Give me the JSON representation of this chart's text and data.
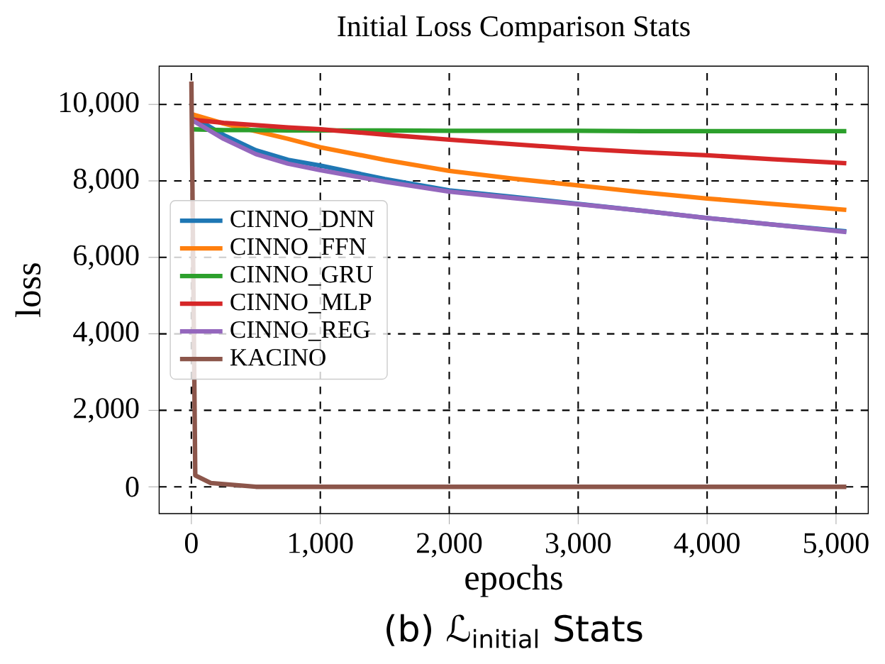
{
  "chart_data": {
    "type": "line",
    "title": "Initial Loss Comparison Stats",
    "xlabel": "epochs",
    "ylabel": "loss",
    "annotations": [
      "(b) ℒ$_{initial}$ Stats"
    ],
    "xlim": [
      -250,
      5250
    ],
    "ylim": [
      -700,
      11000
    ],
    "xticks": [
      0,
      {
        "value": 1000,
        "label": "1,000"
      },
      {
        "value": 2000,
        "label": "2,000"
      },
      {
        "value": 3000,
        "label": "3,000"
      },
      {
        "value": 4000,
        "label": "4,000"
      },
      {
        "value": 5000,
        "label": "5,000"
      }
    ],
    "yticks": [
      0,
      {
        "value": 2000,
        "label": "2,000"
      },
      {
        "value": 4000,
        "label": "4,000"
      },
      {
        "value": 6000,
        "label": "6,000"
      },
      {
        "value": 8000,
        "label": "8,000"
      },
      {
        "value": 10000,
        "label": "10,000"
      }
    ],
    "grid": true,
    "legend": "left",
    "line_style": "solid",
    "x": [
      0,
      250,
      500,
      750,
      1000,
      1500,
      2000,
      2500,
      3000,
      3500,
      4000,
      4500,
      5080
    ],
    "series": [
      {
        "name": "CINNO_DNN",
        "color": "#1f77b4",
        "values": [
          9700,
          9200,
          8800,
          8550,
          8400,
          8050,
          7750,
          7580,
          7400,
          7220,
          7030,
          6860,
          6680
        ]
      },
      {
        "name": "CINNO_FFN",
        "color": "#ff7f0e",
        "values": [
          9750,
          9500,
          9300,
          9100,
          8880,
          8550,
          8260,
          8060,
          7880,
          7700,
          7540,
          7400,
          7240
        ]
      },
      {
        "name": "CINNO_GRU",
        "color": "#2ca02c",
        "values": [
          9350,
          9330,
          9330,
          9320,
          9320,
          9320,
          9310,
          9310,
          9310,
          9300,
          9300,
          9300,
          9300
        ]
      },
      {
        "name": "CINNO_MLP",
        "color": "#d62728",
        "values": [
          9600,
          9520,
          9460,
          9400,
          9350,
          9210,
          9080,
          8960,
          8840,
          8750,
          8670,
          8570,
          8460
        ]
      },
      {
        "name": "CINNO_REG",
        "color": "#9467bd",
        "values": [
          9600,
          9100,
          8700,
          8450,
          8280,
          7980,
          7720,
          7550,
          7390,
          7220,
          7030,
          6860,
          6660
        ]
      },
      {
        "name": "KACINO",
        "color": "#8c564b",
        "x": [
          0,
          30,
          150,
          500,
          1000,
          2000,
          5080
        ],
        "values": [
          10600,
          300,
          100,
          0,
          0,
          0,
          0
        ]
      }
    ]
  }
}
